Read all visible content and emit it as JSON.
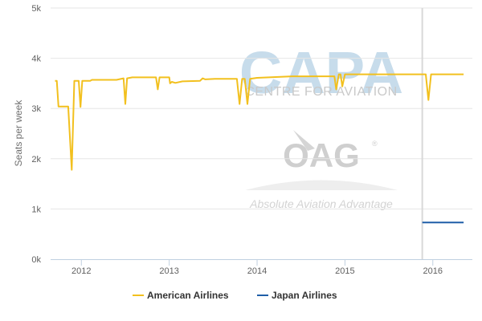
{
  "chart_data": {
    "type": "line",
    "title": "",
    "xlabel": "",
    "ylabel": "Seats per week",
    "ylim": [
      0,
      5000
    ],
    "xlim": [
      2011.65,
      2016.45
    ],
    "y_ticks": [
      {
        "value": 0,
        "label": "0k"
      },
      {
        "value": 1000,
        "label": "1k"
      },
      {
        "value": 2000,
        "label": "2k"
      },
      {
        "value": 3000,
        "label": "3k"
      },
      {
        "value": 4000,
        "label": "4k"
      },
      {
        "value": 5000,
        "label": "5k"
      }
    ],
    "x_ticks": [
      {
        "value": 2012,
        "label": "2012"
      },
      {
        "value": 2013,
        "label": "2013"
      },
      {
        "value": 2014,
        "label": "2014"
      },
      {
        "value": 2015,
        "label": "2015"
      },
      {
        "value": 2016,
        "label": "2016"
      }
    ],
    "grid": "horizontal",
    "legend_position": "bottom",
    "marker_line_x": 2015.88,
    "series": [
      {
        "name": "American Airlines",
        "color": "#f2c01e",
        "points": [
          [
            2011.7,
            3550
          ],
          [
            2011.72,
            3550
          ],
          [
            2011.74,
            3040
          ],
          [
            2011.85,
            3040
          ],
          [
            2011.89,
            1780
          ],
          [
            2011.92,
            3550
          ],
          [
            2011.97,
            3550
          ],
          [
            2011.99,
            3030
          ],
          [
            2012.01,
            3550
          ],
          [
            2012.1,
            3550
          ],
          [
            2012.12,
            3570
          ],
          [
            2012.4,
            3570
          ],
          [
            2012.48,
            3600
          ],
          [
            2012.5,
            3090
          ],
          [
            2012.52,
            3600
          ],
          [
            2012.58,
            3620
          ],
          [
            2012.85,
            3620
          ],
          [
            2012.87,
            3380
          ],
          [
            2012.89,
            3620
          ],
          [
            2013.0,
            3620
          ],
          [
            2013.01,
            3500
          ],
          [
            2013.03,
            3530
          ],
          [
            2013.07,
            3510
          ],
          [
            2013.15,
            3540
          ],
          [
            2013.35,
            3550
          ],
          [
            2013.38,
            3600
          ],
          [
            2013.41,
            3580
          ],
          [
            2013.52,
            3590
          ],
          [
            2013.77,
            3590
          ],
          [
            2013.8,
            3090
          ],
          [
            2013.83,
            3590
          ],
          [
            2013.86,
            3590
          ],
          [
            2013.89,
            3090
          ],
          [
            2013.92,
            3590
          ],
          [
            2014.0,
            3610
          ],
          [
            2014.4,
            3640
          ],
          [
            2014.88,
            3640
          ],
          [
            2014.9,
            3380
          ],
          [
            2014.93,
            3680
          ],
          [
            2014.95,
            3680
          ],
          [
            2014.97,
            3440
          ],
          [
            2015.0,
            3680
          ],
          [
            2015.2,
            3680
          ],
          [
            2015.92,
            3680
          ],
          [
            2015.95,
            3170
          ],
          [
            2015.98,
            3680
          ],
          [
            2016.35,
            3680
          ]
        ]
      },
      {
        "name": "Japan Airlines",
        "color": "#1f5ea8",
        "points": [
          [
            2015.88,
            730
          ],
          [
            2016.35,
            730
          ]
        ]
      }
    ]
  },
  "watermark": {
    "capa_text": "CAPA",
    "capa_sub": "CENTRE FOR AVIATION",
    "oag_text": "OAG",
    "oag_reg": "®",
    "oag_tagline": "Absolute Aviation Advantage"
  }
}
